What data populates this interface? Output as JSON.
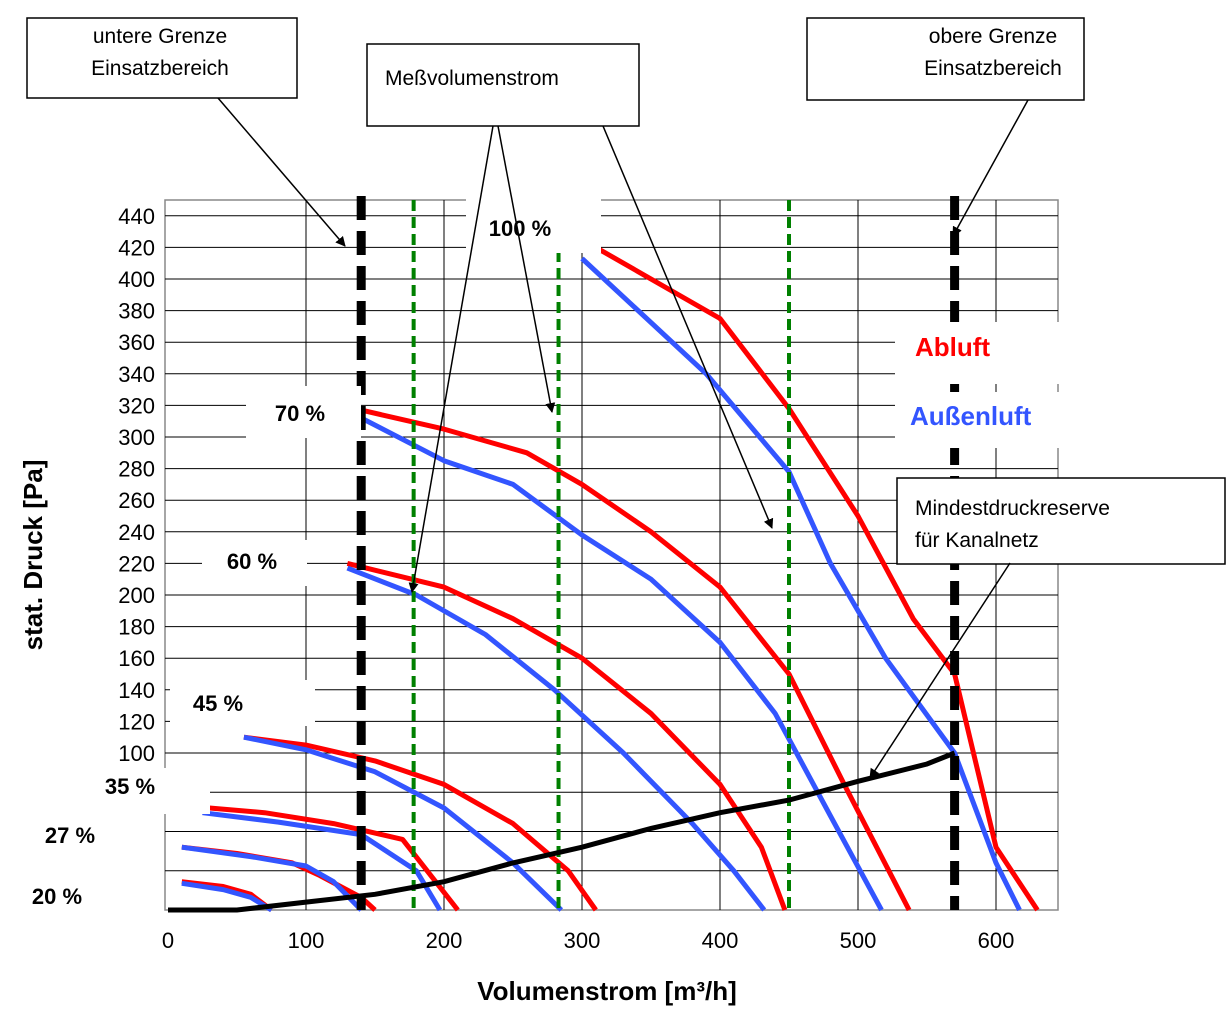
{
  "colors": {
    "abluft": "#ff0000",
    "aussenluft": "#3355ff",
    "limit": "#000000",
    "measure": "#008000",
    "reserve": "#000000"
  },
  "chart_data": {
    "type": "line",
    "xlabel": "Volumenstrom [m³/h]",
    "ylabel": "stat. Druck [Pa]",
    "xlim": [
      0,
      630
    ],
    "ylim": [
      0,
      440
    ],
    "x_ticks": [
      "0",
      "100",
      "200",
      "300",
      "400",
      "500",
      "600"
    ],
    "y_ticks": [
      "100",
      "120",
      "140",
      "160",
      "180",
      "200",
      "220",
      "240",
      "260",
      "280",
      "300",
      "320",
      "340",
      "360",
      "380",
      "400",
      "420",
      "440"
    ],
    "legend": [
      {
        "label": "Abluft",
        "color": "#ff0000"
      },
      {
        "label": "Außenluft",
        "color": "#3355ff"
      }
    ],
    "fan_stages": [
      {
        "label": "100 %",
        "abluft": [
          [
            310,
            420
          ],
          [
            400,
            375
          ],
          [
            450,
            318
          ],
          [
            500,
            250
          ],
          [
            540,
            185
          ],
          [
            570,
            150
          ],
          [
            600,
            40
          ],
          [
            630,
            0
          ]
        ],
        "aussenluft": [
          [
            300,
            413
          ],
          [
            390,
            340
          ],
          [
            450,
            278
          ],
          [
            480,
            220
          ],
          [
            520,
            160
          ],
          [
            570,
            100
          ],
          [
            600,
            30
          ],
          [
            617,
            0
          ]
        ]
      },
      {
        "label": "70 %",
        "abluft": [
          [
            140,
            317
          ],
          [
            200,
            305
          ],
          [
            260,
            290
          ],
          [
            300,
            270
          ],
          [
            350,
            240
          ],
          [
            400,
            205
          ],
          [
            450,
            150
          ],
          [
            490,
            80
          ],
          [
            537,
            0
          ]
        ],
        "aussenluft": [
          [
            140,
            312
          ],
          [
            200,
            285
          ],
          [
            250,
            270
          ],
          [
            300,
            238
          ],
          [
            350,
            210
          ],
          [
            400,
            170
          ],
          [
            440,
            125
          ],
          [
            480,
            60
          ],
          [
            517,
            0
          ]
        ]
      },
      {
        "label": "60 %",
        "abluft": [
          [
            130,
            220
          ],
          [
            200,
            205
          ],
          [
            250,
            185
          ],
          [
            300,
            160
          ],
          [
            350,
            125
          ],
          [
            400,
            80
          ],
          [
            430,
            40
          ],
          [
            447,
            0
          ]
        ],
        "aussenluft": [
          [
            130,
            217
          ],
          [
            180,
            200
          ],
          [
            230,
            175
          ],
          [
            280,
            140
          ],
          [
            330,
            100
          ],
          [
            380,
            55
          ],
          [
            410,
            25
          ],
          [
            432,
            0
          ]
        ]
      },
      {
        "label": "45 %",
        "abluft": [
          [
            55,
            110
          ],
          [
            100,
            105
          ],
          [
            150,
            95
          ],
          [
            200,
            80
          ],
          [
            250,
            55
          ],
          [
            290,
            25
          ],
          [
            310,
            0
          ]
        ],
        "aussenluft": [
          [
            55,
            110
          ],
          [
            100,
            102
          ],
          [
            150,
            88
          ],
          [
            200,
            65
          ],
          [
            250,
            30
          ],
          [
            285,
            0
          ]
        ]
      },
      {
        "label": "35 %",
        "abluft": [
          [
            30,
            65
          ],
          [
            70,
            62
          ],
          [
            120,
            55
          ],
          [
            170,
            45
          ],
          [
            210,
            0
          ]
        ],
        "aussenluft": [
          [
            25,
            62
          ],
          [
            80,
            56
          ],
          [
            140,
            48
          ],
          [
            180,
            25
          ],
          [
            197,
            0
          ]
        ]
      },
      {
        "label": "27 %",
        "abluft": [
          [
            10,
            40
          ],
          [
            50,
            36
          ],
          [
            90,
            30
          ],
          [
            110,
            22
          ],
          [
            125,
            15
          ],
          [
            140,
            8
          ],
          [
            150,
            0
          ]
        ],
        "aussenluft": [
          [
            10,
            40
          ],
          [
            60,
            34
          ],
          [
            100,
            28
          ],
          [
            120,
            18
          ],
          [
            140,
            0
          ]
        ]
      },
      {
        "label": "20 %",
        "abluft": [
          [
            10,
            18
          ],
          [
            40,
            15
          ],
          [
            60,
            10
          ],
          [
            75,
            0
          ]
        ],
        "aussenluft": [
          [
            10,
            17
          ],
          [
            40,
            13
          ],
          [
            60,
            8
          ],
          [
            75,
            0
          ]
        ]
      }
    ],
    "limits": [
      {
        "name": "untere Grenze Einsatzbereich",
        "x": 140
      },
      {
        "name": "obere Grenze Einsatzbereich",
        "x": 570
      }
    ],
    "measurement_lines": [
      {
        "x": 178
      },
      {
        "x": 283
      },
      {
        "x": 450
      }
    ],
    "reserve_curve": [
      [
        0,
        0
      ],
      [
        50,
        0
      ],
      [
        100,
        5
      ],
      [
        150,
        10
      ],
      [
        200,
        18
      ],
      [
        250,
        30
      ],
      [
        300,
        40
      ],
      [
        350,
        52
      ],
      [
        400,
        62
      ],
      [
        450,
        70
      ],
      [
        500,
        82
      ],
      [
        550,
        93
      ],
      [
        570,
        100
      ]
    ],
    "annotations": [
      "untere Grenze",
      "Einsatzbereich",
      "Meßvolumenstrom",
      "obere Grenze",
      "Einsatzbereich",
      "Mindestdruckreserve",
      "für Kanalnetz"
    ]
  }
}
